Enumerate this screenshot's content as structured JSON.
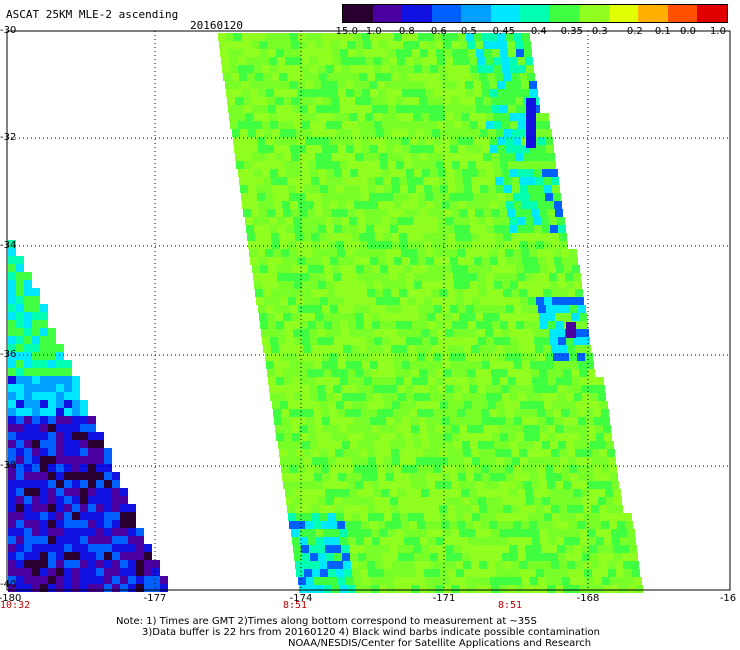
{
  "header": {
    "title": "ASCAT 25KM MLE-2 ascending",
    "date": "20160120"
  },
  "colorbar": {
    "labels": [
      "-15.0",
      "-1.0",
      "-0.8",
      "-0.6",
      "-0.5",
      "-0.45",
      "-0.4",
      "-0.35",
      "-0.3",
      "-0.2",
      "-0.1",
      "0.0",
      "1.0"
    ],
    "colors": [
      "#2a0030",
      "#4a00a0",
      "#1010e0",
      "#0060ff",
      "#00a0ff",
      "#00e8ff",
      "#00ffb0",
      "#40ff40",
      "#90ff20",
      "#e0ff00",
      "#ffb000",
      "#ff5000",
      "#e00000"
    ]
  },
  "axes": {
    "lat_labels": [
      "-30",
      "-32",
      "-34",
      "-36",
      "-38",
      "-40"
    ],
    "lon_labels": [
      "-180",
      "-177",
      "-174",
      "-171",
      "-168",
      "-16"
    ]
  },
  "times": [
    "10:32",
    "8:51",
    "8:51"
  ],
  "footer": {
    "line1": "Note: 1) Times are GMT 2)Times along bottom correspond to measurement at ~35S",
    "line2": "3)Data buffer is 22 hrs from 20160120 4) Black wind barbs indicate possible contamination",
    "line3": "NOAA/NESDIS/Center for Satellite Applications and Research"
  },
  "swaths": [
    {
      "name": "left-swath",
      "dominant": "-1.0"
    },
    {
      "name": "center-swath",
      "dominant": "-0.35"
    }
  ]
}
